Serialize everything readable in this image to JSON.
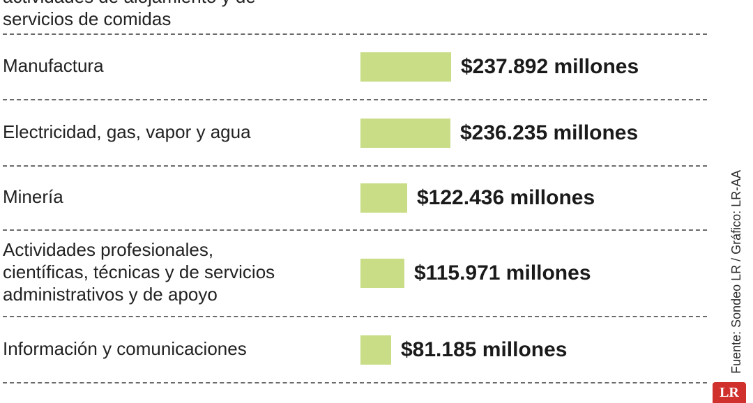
{
  "chart_data": {
    "type": "bar",
    "orientation": "horizontal",
    "categories": [
      "actividades de alojamiento y de\nservicios de comidas",
      "Manufactura",
      "Electricidad, gas, vapor y agua",
      "Minería",
      "Actividades profesionales,\ncientíficas, técnicas y de servicios\nadministrativos y de apoyo",
      "Información y comunicaciones"
    ],
    "values": [
      null,
      237892,
      236235,
      122436,
      115971,
      81185
    ],
    "value_labels": [
      "",
      "$237.892 millones",
      "$236.235 millones",
      "$122.436 millones",
      "$115.971 millones",
      "$81.185 millones"
    ],
    "bar_color": "#c9dc86",
    "grid": false
  },
  "source": "Fuente: Sondeo LR / Gráfico: LR-AA",
  "logo": {
    "text": "LR",
    "color": "#d0312d"
  }
}
